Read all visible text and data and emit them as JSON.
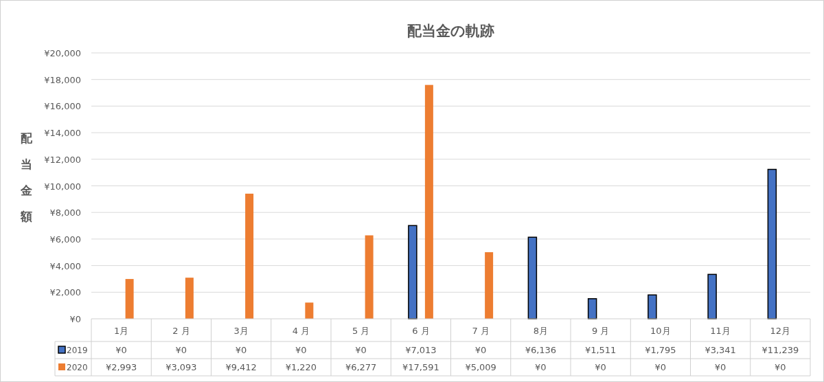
{
  "chart_data": {
    "type": "bar",
    "title": "配当金の軌跡",
    "ylabel": "配当金額",
    "categories": [
      "1月",
      "2 月",
      "3月",
      "4 月",
      "5 月",
      "6 月",
      "7 月",
      "8月",
      "9 月",
      "10月",
      "11月",
      "12月"
    ],
    "series": [
      {
        "name": "2019",
        "color": "#4472c4",
        "values": [
          0,
          0,
          0,
          0,
          0,
          7013,
          0,
          6136,
          1511,
          1795,
          3341,
          11239
        ],
        "value_labels": [
          "¥0",
          "¥0",
          "¥0",
          "¥0",
          "¥0",
          "¥7,013",
          "¥0",
          "¥6,136",
          "¥1,511",
          "¥1,795",
          "¥3,341",
          "¥11,239"
        ]
      },
      {
        "name": "2020",
        "color": "#ed7d31",
        "values": [
          2993,
          3093,
          9412,
          1220,
          6277,
          17591,
          5009,
          0,
          0,
          0,
          0,
          0
        ],
        "value_labels": [
          "¥2,993",
          "¥3,093",
          "¥9,412",
          "¥1,220",
          "¥6,277",
          "¥17,591",
          "¥5,009",
          "¥0",
          "¥0",
          "¥0",
          "¥0",
          "¥0"
        ]
      }
    ],
    "ylim": [
      0,
      20000
    ],
    "yticks": [
      {
        "value": 0,
        "label": "¥0"
      },
      {
        "value": 2000,
        "label": "¥2,000"
      },
      {
        "value": 4000,
        "label": "¥4,000"
      },
      {
        "value": 6000,
        "label": "¥6,000"
      },
      {
        "value": 8000,
        "label": "¥8,000"
      },
      {
        "value": 10000,
        "label": "¥10,000"
      },
      {
        "value": 12000,
        "label": "¥12,000"
      },
      {
        "value": 14000,
        "label": "¥14,000"
      },
      {
        "value": 16000,
        "label": "¥16,000"
      },
      {
        "value": 18000,
        "label": "¥18,000"
      },
      {
        "value": 20000,
        "label": "¥20,000"
      }
    ],
    "grid": "y",
    "legend": "bottom"
  }
}
